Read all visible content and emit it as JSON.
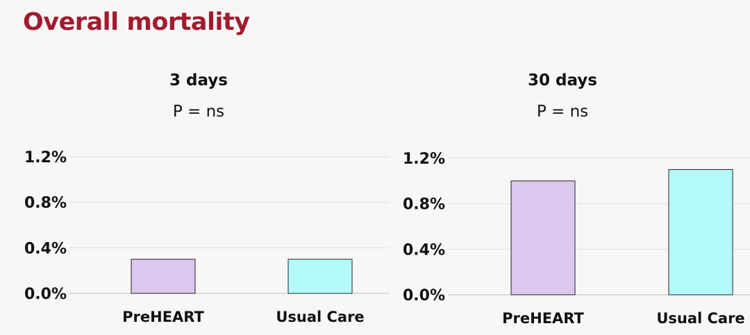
{
  "page_title": "Overall mortality",
  "chart_data": [
    {
      "type": "bar",
      "title": "3 days",
      "subtitle": "P = ns",
      "categories": [
        "PreHEART",
        "Usual Care"
      ],
      "values": [
        0.3,
        0.3
      ],
      "colors": [
        "#dcc8ee",
        "#b4fafa"
      ],
      "yticks": [
        "0.0%",
        "0.4%",
        "0.8%",
        "1.2%"
      ],
      "ylim": [
        0,
        1.2
      ],
      "grid": true
    },
    {
      "type": "bar",
      "title": "30 days",
      "subtitle": "P = ns",
      "categories": [
        "PreHEART",
        "Usual Care"
      ],
      "values": [
        1.0,
        1.1
      ],
      "colors": [
        "#dcc8ee",
        "#b4fafa"
      ],
      "yticks": [
        "0.0%",
        "0.4%",
        "0.8%",
        "1.2%"
      ],
      "ylim": [
        0,
        1.2
      ],
      "grid": true
    }
  ]
}
